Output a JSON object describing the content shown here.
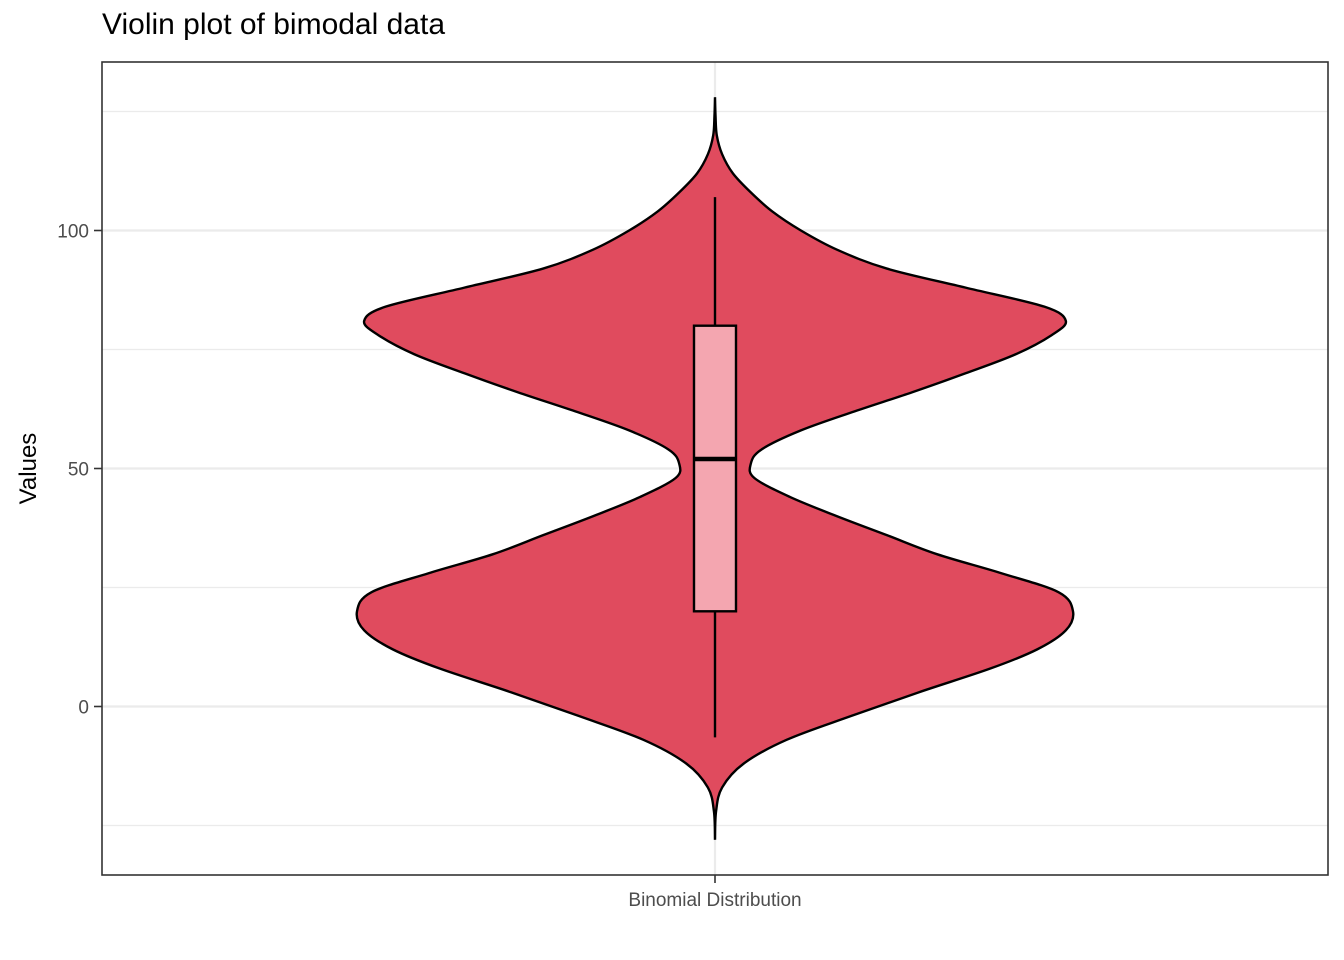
{
  "chart_data": {
    "type": "violin",
    "title": "Violin plot of bimodal data",
    "xlabel": "",
    "ylabel": "Values",
    "categories": [
      "Binomial Distribution"
    ],
    "y_ticks": [
      0,
      50,
      100
    ],
    "y_tick_labels": [
      "0",
      "50",
      "100"
    ],
    "ylim": [
      -35.4,
      135.4
    ],
    "grid": true,
    "violin": {
      "min": -28,
      "max": 128,
      "density_profile": [
        {
          "y": -28,
          "w": 0.0
        },
        {
          "y": -22,
          "w": 0.003
        },
        {
          "y": -17,
          "w": 0.02
        },
        {
          "y": -12,
          "w": 0.08
        },
        {
          "y": -7,
          "w": 0.2
        },
        {
          "y": -2,
          "w": 0.38
        },
        {
          "y": 3,
          "w": 0.57
        },
        {
          "y": 8,
          "w": 0.77
        },
        {
          "y": 12,
          "w": 0.9
        },
        {
          "y": 16,
          "w": 0.98
        },
        {
          "y": 20,
          "w": 1.0
        },
        {
          "y": 24,
          "w": 0.96
        },
        {
          "y": 28,
          "w": 0.8
        },
        {
          "y": 32,
          "w": 0.62
        },
        {
          "y": 36,
          "w": 0.48
        },
        {
          "y": 40,
          "w": 0.34
        },
        {
          "y": 44,
          "w": 0.21
        },
        {
          "y": 48,
          "w": 0.11
        },
        {
          "y": 51,
          "w": 0.1
        },
        {
          "y": 54,
          "w": 0.13
        },
        {
          "y": 58,
          "w": 0.24
        },
        {
          "y": 62,
          "w": 0.39
        },
        {
          "y": 66,
          "w": 0.55
        },
        {
          "y": 70,
          "w": 0.7
        },
        {
          "y": 74,
          "w": 0.84
        },
        {
          "y": 78,
          "w": 0.94
        },
        {
          "y": 81,
          "w": 0.98
        },
        {
          "y": 84,
          "w": 0.92
        },
        {
          "y": 88,
          "w": 0.7
        },
        {
          "y": 92,
          "w": 0.48
        },
        {
          "y": 96,
          "w": 0.34
        },
        {
          "y": 100,
          "w": 0.24
        },
        {
          "y": 104,
          "w": 0.16
        },
        {
          "y": 108,
          "w": 0.1
        },
        {
          "y": 112,
          "w": 0.05
        },
        {
          "y": 116,
          "w": 0.02
        },
        {
          "y": 120,
          "w": 0.005
        },
        {
          "y": 124,
          "w": 0.0015
        },
        {
          "y": 128,
          "w": 0.0
        }
      ]
    },
    "boxplot": {
      "whisker_low": -6.5,
      "q1": 20,
      "median": 52,
      "q3": 80,
      "whisker_high": 107
    },
    "colors": {
      "violin_fill": "#E04B5E",
      "box_fill": "#F4A6B0",
      "outline": "#000000",
      "grid": "#EBEBEB",
      "panel_border": "#333333",
      "tick_text": "#4D4D4D"
    }
  }
}
